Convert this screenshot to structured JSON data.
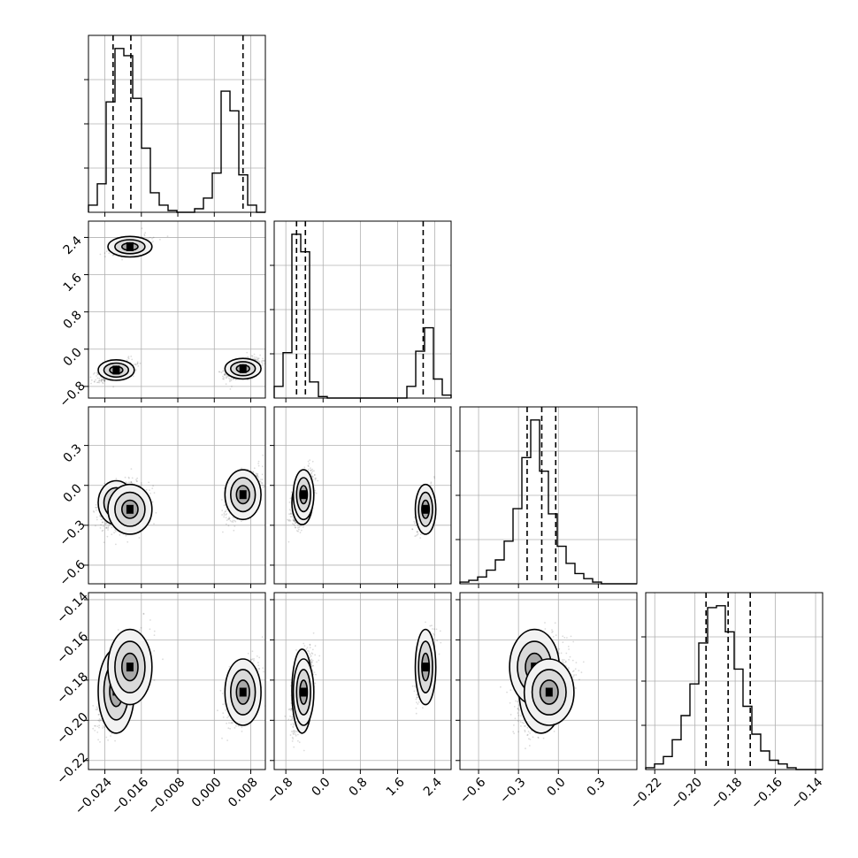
{
  "chart_data": {
    "type": "corner",
    "n_params": 4,
    "grid": true,
    "params": [
      {
        "index": 0,
        "range": [
          -0.0276,
          0.0112
        ],
        "ticks": [
          "-0.024",
          "-0.016",
          "-0.008",
          "0.000",
          "0.008"
        ],
        "tick_values": [
          -0.024,
          -0.016,
          -0.008,
          0.0,
          0.008
        ],
        "quantiles": [
          -0.0222,
          -0.0183,
          0.0063
        ]
      },
      {
        "index": 1,
        "range": [
          -1.05,
          2.75
        ],
        "ticks": [
          "-0.8",
          "0.0",
          "0.8",
          "1.6",
          "2.4"
        ],
        "tick_values": [
          -0.8,
          0.0,
          0.8,
          1.6,
          2.4
        ],
        "quantiles": [
          -0.57,
          -0.38,
          2.15
        ]
      },
      {
        "index": 2,
        "range": [
          -0.74,
          0.59
        ],
        "ticks": [
          "-0.6",
          "-0.3",
          "0.0",
          "0.3"
        ],
        "tick_values": [
          -0.6,
          -0.3,
          0.0,
          0.3
        ],
        "quantiles": [
          -0.235,
          -0.125,
          -0.02
        ]
      },
      {
        "index": 3,
        "range": [
          -0.2245,
          -0.1365
        ],
        "ticks": [
          "-0.22",
          "-0.20",
          "-0.18",
          "-0.16",
          "-0.14"
        ],
        "tick_values": [
          -0.22,
          -0.2,
          -0.18,
          -0.16,
          -0.14
        ],
        "quantiles": [
          -0.1945,
          -0.1835,
          -0.1725
        ]
      }
    ],
    "histograms": [
      {
        "param": 0,
        "counts": [
          0.04,
          0.16,
          0.62,
          0.92,
          0.88,
          0.64,
          0.36,
          0.11,
          0.04,
          0.01,
          0.0,
          0.0,
          0.02,
          0.08,
          0.22,
          0.68,
          0.57,
          0.21,
          0.04,
          0.0
        ]
      },
      {
        "param": 1,
        "counts": [
          0.08,
          0.31,
          1.12,
          1.0,
          0.11,
          0.01,
          0.0,
          0.0,
          0.0,
          0.0,
          0.0,
          0.0,
          0.0,
          0.0,
          0.0,
          0.08,
          0.32,
          0.48,
          0.13,
          0.02
        ]
      },
      {
        "param": 2,
        "counts": [
          0.01,
          0.02,
          0.04,
          0.08,
          0.14,
          0.25,
          0.44,
          0.74,
          0.96,
          0.66,
          0.41,
          0.22,
          0.12,
          0.06,
          0.03,
          0.01,
          0.0,
          0.0,
          0.0,
          0.0
        ]
      },
      {
        "param": 3,
        "counts": [
          0.01,
          0.03,
          0.07,
          0.16,
          0.29,
          0.46,
          0.68,
          0.87,
          0.88,
          0.74,
          0.54,
          0.34,
          0.19,
          0.1,
          0.05,
          0.03,
          0.01,
          0.0,
          0.0,
          0.0
        ]
      }
    ],
    "modes": [
      {
        "weight": 0.42,
        "mean": [
          -0.0215,
          -0.45,
          -0.13,
          -0.1855
        ],
        "sd": [
          0.0018,
          0.1,
          0.075,
          0.0095
        ]
      },
      {
        "weight": 0.16,
        "mean": [
          -0.0185,
          2.2,
          -0.18,
          -0.1735
        ],
        "sd": [
          0.0022,
          0.1,
          0.085,
          0.0085
        ]
      },
      {
        "weight": 0.42,
        "mean": [
          0.0063,
          -0.42,
          -0.07,
          -0.186
        ],
        "sd": [
          0.0018,
          0.1,
          0.085,
          0.0075
        ]
      }
    ],
    "samples_per_panel": 1600,
    "contour_levels": 3
  },
  "colors": {
    "ink": "#000000",
    "grid": "#b0b0b0"
  }
}
